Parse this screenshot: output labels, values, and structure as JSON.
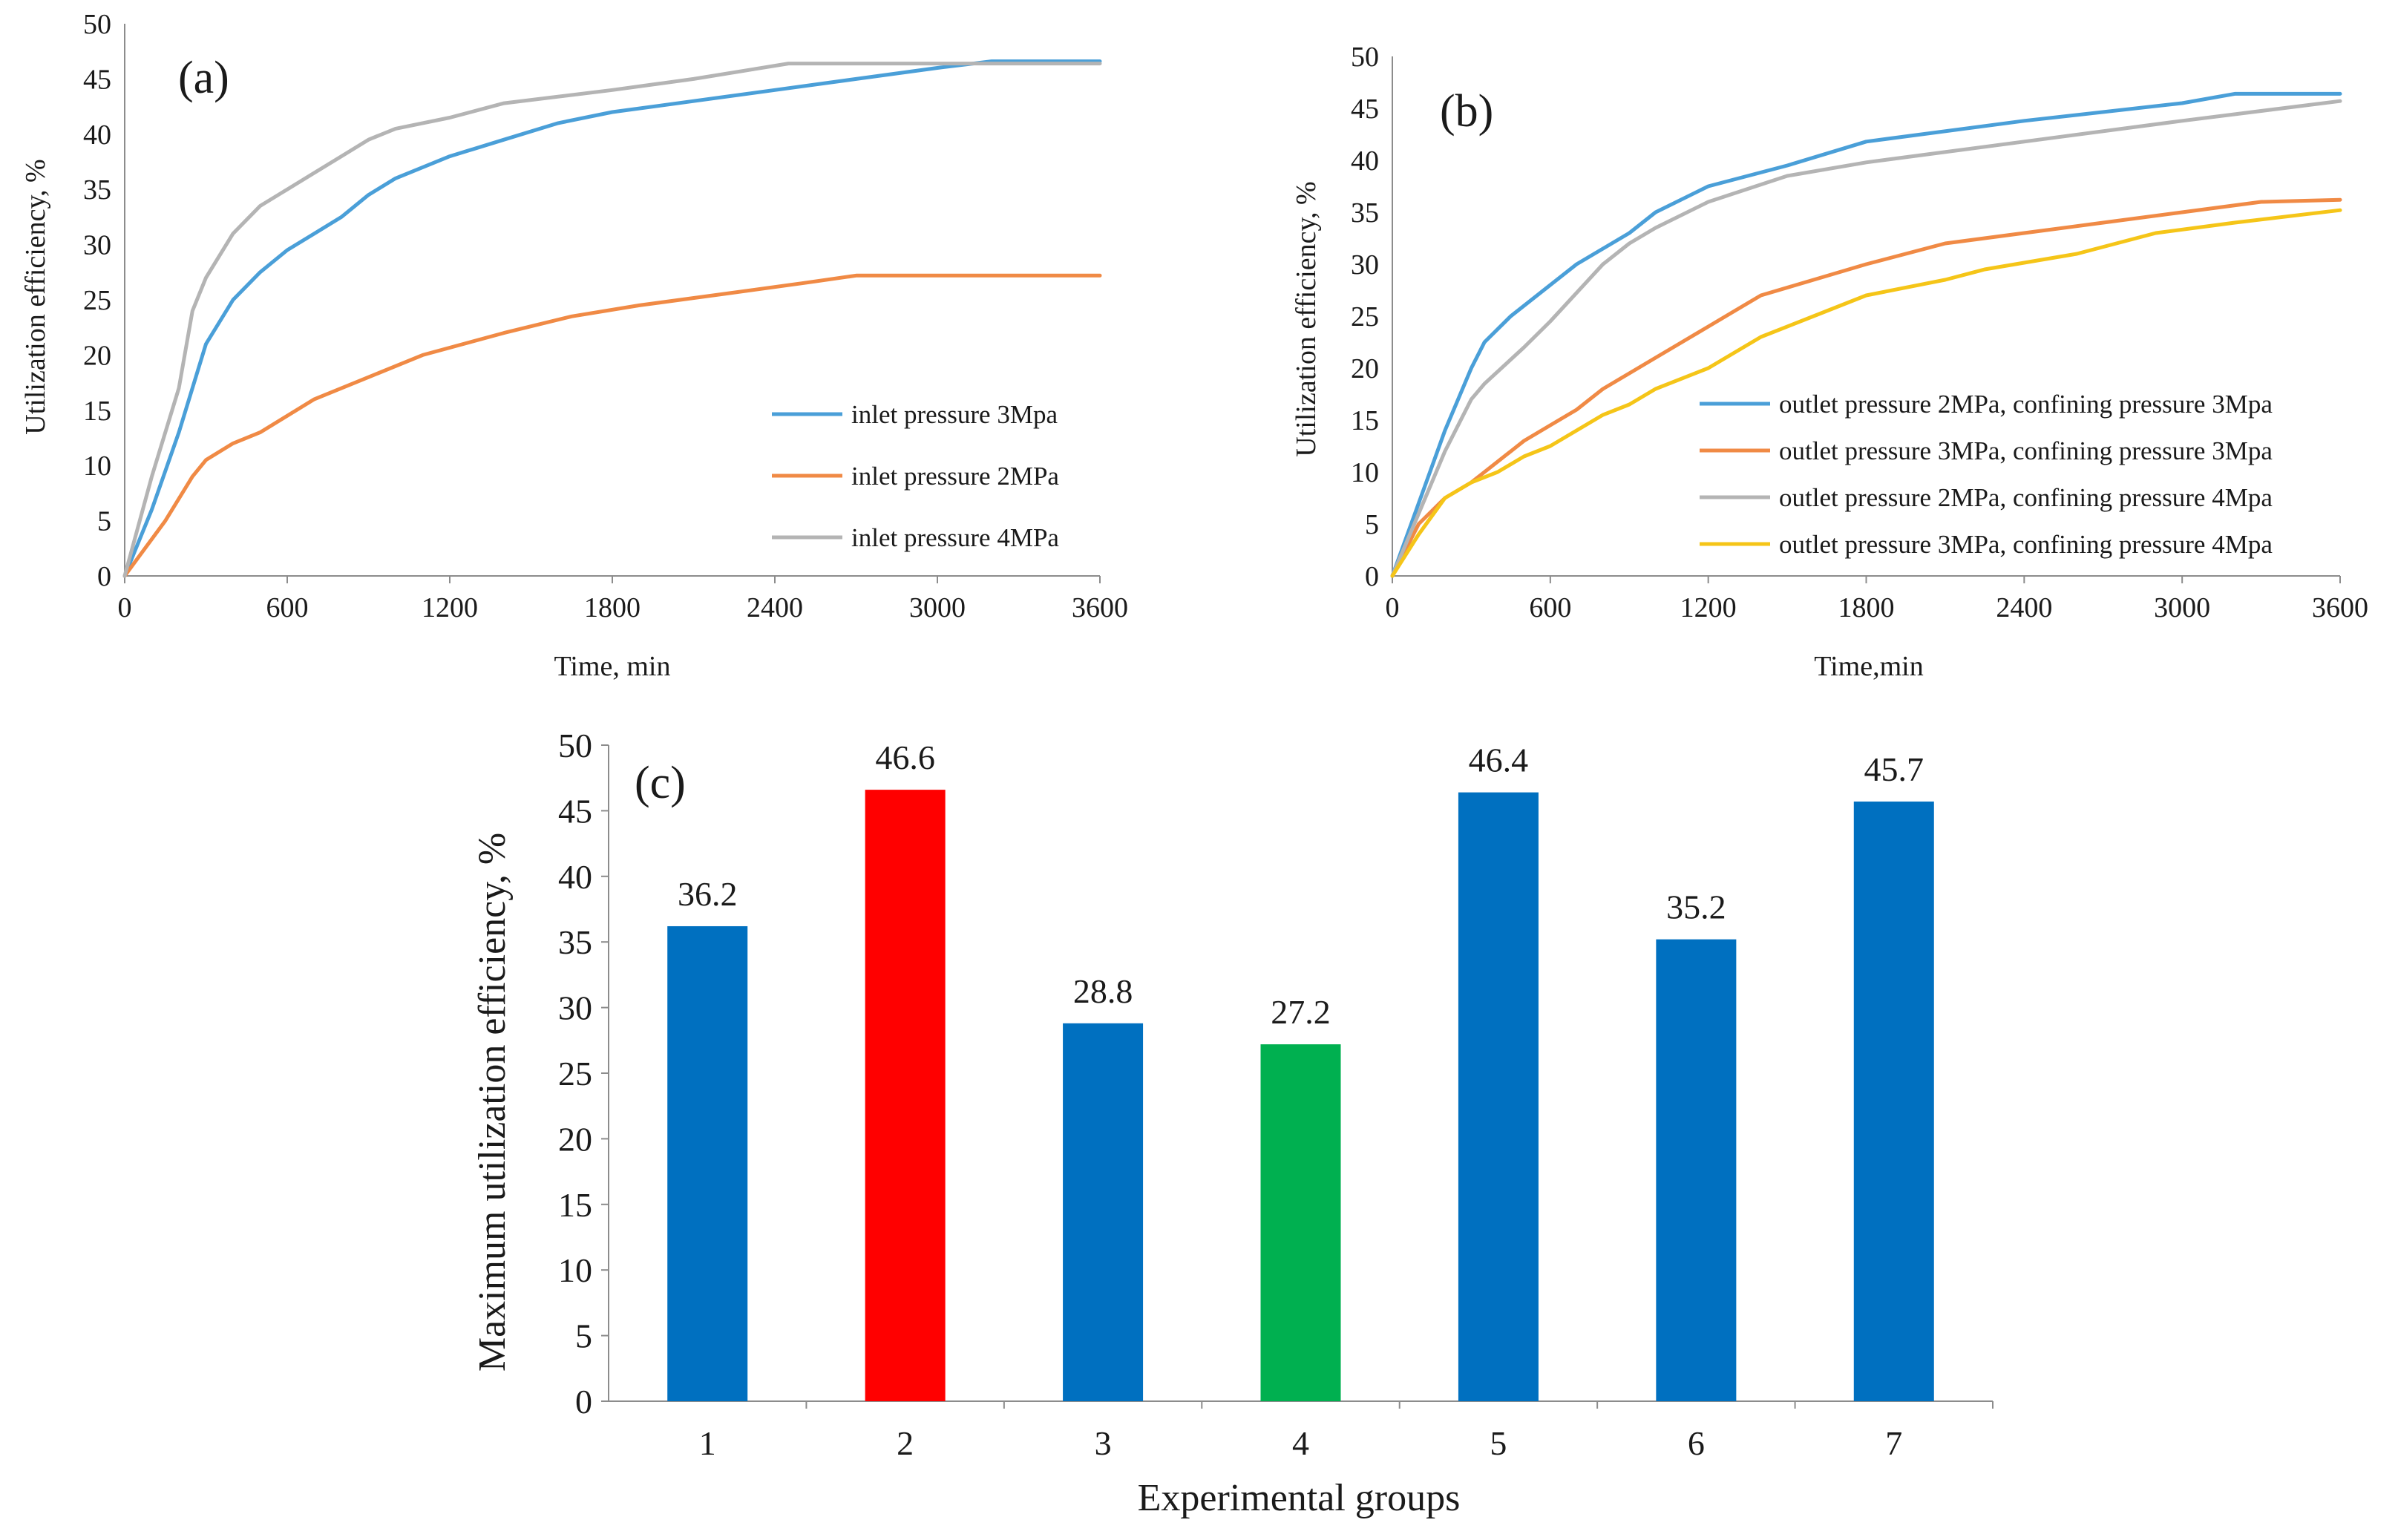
{
  "chart_data": [
    {
      "type": "line",
      "panel_label": "(a)",
      "xlabel": "Time, min",
      "ylabel": "Utilization efficiency, %",
      "xlim": [
        0,
        3600
      ],
      "ylim": [
        0,
        50
      ],
      "xticks": [
        "0",
        "600",
        "1200",
        "1800",
        "2400",
        "3000",
        "3600"
      ],
      "yticks": [
        "0",
        "5",
        "10",
        "15",
        "20",
        "25",
        "30",
        "35",
        "40",
        "45",
        "50"
      ],
      "legend_position": "right-middle",
      "series": [
        {
          "name": "inlet pressure 3Mpa",
          "color": "#4a9fd8",
          "points": [
            [
              0,
              0
            ],
            [
              100,
              6
            ],
            [
              200,
              13
            ],
            [
              300,
              21
            ],
            [
              400,
              25
            ],
            [
              500,
              27.5
            ],
            [
              600,
              29.5
            ],
            [
              700,
              31
            ],
            [
              800,
              32.5
            ],
            [
              900,
              34.5
            ],
            [
              1000,
              36
            ],
            [
              1200,
              38
            ],
            [
              1400,
              39.5
            ],
            [
              1600,
              41
            ],
            [
              1800,
              42
            ],
            [
              2100,
              43
            ],
            [
              2400,
              44
            ],
            [
              2700,
              45
            ],
            [
              3000,
              46
            ],
            [
              3200,
              46.6
            ],
            [
              3600,
              46.6
            ]
          ]
        },
        {
          "name": "inlet pressure 2MPa",
          "color": "#f08a45",
          "points": [
            [
              0,
              0
            ],
            [
              150,
              5
            ],
            [
              250,
              9
            ],
            [
              300,
              10.5
            ],
            [
              400,
              12
            ],
            [
              500,
              13
            ],
            [
              700,
              16
            ],
            [
              900,
              18
            ],
            [
              1100,
              20
            ],
            [
              1400,
              22
            ],
            [
              1650,
              23.5
            ],
            [
              1900,
              24.5
            ],
            [
              2200,
              25.5
            ],
            [
              2500,
              26.5
            ],
            [
              2700,
              27.2
            ],
            [
              3600,
              27.2
            ]
          ]
        },
        {
          "name": "inlet pressure 4MPa",
          "color": "#b4b4b4",
          "points": [
            [
              0,
              0
            ],
            [
              100,
              9
            ],
            [
              200,
              17
            ],
            [
              250,
              24
            ],
            [
              300,
              27
            ],
            [
              400,
              31
            ],
            [
              500,
              33.5
            ],
            [
              600,
              35
            ],
            [
              700,
              36.5
            ],
            [
              800,
              38
            ],
            [
              900,
              39.5
            ],
            [
              1000,
              40.5
            ],
            [
              1200,
              41.5
            ],
            [
              1400,
              42.8
            ],
            [
              1800,
              44
            ],
            [
              2100,
              45
            ],
            [
              2450,
              46.4
            ],
            [
              3600,
              46.4
            ]
          ]
        }
      ]
    },
    {
      "type": "line",
      "panel_label": "(b)",
      "xlabel": "Time,min",
      "ylabel": "Utilization efficiency, %",
      "xlim": [
        0,
        3600
      ],
      "ylim": [
        0,
        50
      ],
      "xticks": [
        "0",
        "600",
        "1200",
        "1800",
        "2400",
        "3000",
        "3600"
      ],
      "yticks": [
        "0",
        "5",
        "10",
        "15",
        "20",
        "25",
        "30",
        "35",
        "40",
        "45",
        "50"
      ],
      "legend_position": "bottom-right",
      "series": [
        {
          "name": "outlet pressure 2MPa, confining pressure 3Mpa",
          "color": "#4a9fd8",
          "points": [
            [
              0,
              0
            ],
            [
              100,
              7
            ],
            [
              200,
              14
            ],
            [
              300,
              20
            ],
            [
              350,
              22.5
            ],
            [
              450,
              25
            ],
            [
              600,
              28
            ],
            [
              700,
              30
            ],
            [
              800,
              31.5
            ],
            [
              900,
              33
            ],
            [
              1000,
              35
            ],
            [
              1200,
              37.5
            ],
            [
              1500,
              39.5
            ],
            [
              1800,
              41.8
            ],
            [
              2400,
              43.8
            ],
            [
              3000,
              45.5
            ],
            [
              3200,
              46.4
            ],
            [
              3600,
              46.4
            ]
          ]
        },
        {
          "name": "outlet pressure 3MPa, confining pressure 3Mpa",
          "color": "#f08a45",
          "points": [
            [
              0,
              0
            ],
            [
              100,
              5
            ],
            [
              200,
              7.5
            ],
            [
              300,
              9
            ],
            [
              400,
              11
            ],
            [
              500,
              13
            ],
            [
              600,
              14.5
            ],
            [
              700,
              16
            ],
            [
              800,
              18
            ],
            [
              900,
              19.5
            ],
            [
              1000,
              21
            ],
            [
              1100,
              22.5
            ],
            [
              1200,
              24
            ],
            [
              1300,
              25.5
            ],
            [
              1400,
              27
            ],
            [
              1600,
              28.5
            ],
            [
              1800,
              30
            ],
            [
              2100,
              32
            ],
            [
              2400,
              33
            ],
            [
              2700,
              34
            ],
            [
              3000,
              35
            ],
            [
              3300,
              36
            ],
            [
              3600,
              36.2
            ]
          ]
        },
        {
          "name": "outlet pressure 2MPa, confining pressure 4Mpa",
          "color": "#b4b4b4",
          "points": [
            [
              0,
              0
            ],
            [
              100,
              6
            ],
            [
              200,
              12
            ],
            [
              300,
              17
            ],
            [
              350,
              18.5
            ],
            [
              500,
              22
            ],
            [
              600,
              24.5
            ],
            [
              800,
              30
            ],
            [
              900,
              32
            ],
            [
              1000,
              33.5
            ],
            [
              1200,
              36
            ],
            [
              1500,
              38.5
            ],
            [
              1800,
              39.8
            ],
            [
              2400,
              41.8
            ],
            [
              3000,
              43.8
            ],
            [
              3600,
              45.7
            ]
          ]
        },
        {
          "name": "outlet pressure 3MPa, confining pressure 4Mpa",
          "color": "#f5c518",
          "points": [
            [
              0,
              0
            ],
            [
              100,
              4
            ],
            [
              200,
              7.5
            ],
            [
              300,
              9
            ],
            [
              400,
              10
            ],
            [
              500,
              11.5
            ],
            [
              600,
              12.5
            ],
            [
              700,
              14
            ],
            [
              800,
              15.5
            ],
            [
              900,
              16.5
            ],
            [
              1000,
              18
            ],
            [
              1200,
              20
            ],
            [
              1400,
              23
            ],
            [
              1600,
              25
            ],
            [
              1800,
              27
            ],
            [
              2100,
              28.5
            ],
            [
              2250,
              29.5
            ],
            [
              2600,
              31
            ],
            [
              2900,
              33
            ],
            [
              3200,
              34
            ],
            [
              3600,
              35.2
            ]
          ]
        }
      ]
    },
    {
      "type": "bar",
      "panel_label": "(c)",
      "xlabel": "Experimental groups",
      "ylabel": "Maximum utilization efficiency, %",
      "ylim": [
        0,
        50
      ],
      "yticks": [
        "0",
        "5",
        "10",
        "15",
        "20",
        "25",
        "30",
        "35",
        "40",
        "45",
        "50"
      ],
      "categories": [
        "1",
        "2",
        "3",
        "4",
        "5",
        "6",
        "7"
      ],
      "values": [
        36.2,
        46.6,
        28.8,
        27.2,
        46.4,
        35.2,
        45.7
      ],
      "value_labels": [
        "36.2",
        "46.6",
        "28.8",
        "27.2",
        "46.4",
        "35.2",
        "45.7"
      ],
      "colors": [
        "#0070c0",
        "#ff0000",
        "#0070c0",
        "#00b050",
        "#0070c0",
        "#0070c0",
        "#0070c0"
      ]
    }
  ]
}
